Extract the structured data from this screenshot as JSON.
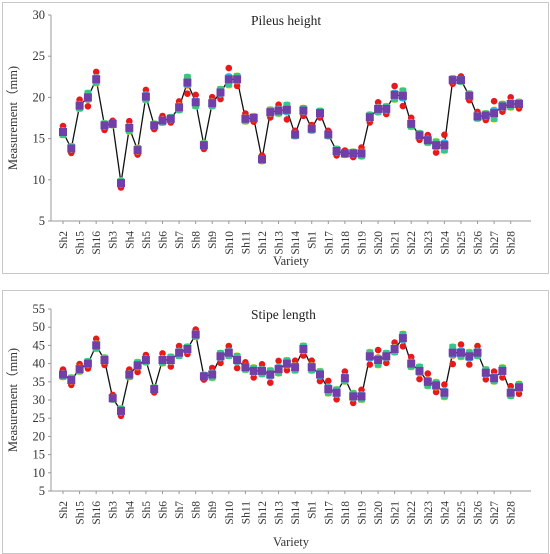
{
  "charts": [
    {
      "id": "pileus",
      "chart_data": {
        "type": "line",
        "title": "Pileus height",
        "xlabel": "Variety",
        "ylabel": "Measurement（mm)",
        "ylim": [
          5,
          30
        ],
        "yticks": [
          5,
          10,
          15,
          20,
          25,
          30
        ],
        "grid": false,
        "categories": [
          "Sh2",
          "Sh15",
          "Sh16",
          "Sh3",
          "Sh4",
          "Sh5",
          "Sh6",
          "Sh7",
          "Sh8",
          "Sh9",
          "Sh10",
          "Sh11",
          "Sh12",
          "Sh13",
          "Sh14",
          "Sh1",
          "Sh17",
          "Sh18",
          "Sh19",
          "Sh20",
          "Sh21",
          "Sh22",
          "Sh23",
          "Sh24",
          "Sh25",
          "Sh26",
          "Sh27",
          "Sh28"
        ],
        "x_index": [
          0,
          0.5,
          1,
          1.5,
          2,
          2.5,
          3,
          3.5,
          4,
          4.5,
          5,
          5.5,
          6,
          6.5,
          7,
          7.5,
          8,
          8.5,
          9,
          9.5,
          10,
          10.5,
          11,
          11.5,
          12,
          12.5,
          13,
          13.5,
          14,
          14.5,
          15,
          15.5,
          16,
          16.5,
          17,
          17.5,
          18,
          18.5,
          19,
          19.5,
          20,
          20.5,
          21,
          21.5,
          22,
          22.5,
          23,
          23.5,
          24,
          24.5,
          25,
          25.5,
          26,
          26.5,
          27,
          27.5
        ],
        "mean": [
          15.8,
          13.8,
          19,
          20,
          22.2,
          16.6,
          16.8,
          9.6,
          16.3,
          13.6,
          20.1,
          16.6,
          17.2,
          17.4,
          18.8,
          21.8,
          19.4,
          14.2,
          19.3,
          20.6,
          22.2,
          22.2,
          17.4,
          17.5,
          12.5,
          18.2,
          18.4,
          18.5,
          15.5,
          18.4,
          16.2,
          18.1,
          15.5,
          13.5,
          13.2,
          13.2,
          13.2,
          17.6,
          18.6,
          18.6,
          20.3,
          20.2,
          16.8,
          15.4,
          14.8,
          14.2,
          14.2,
          22.1,
          22.1,
          20.2,
          17.7,
          17.8,
          18.1,
          18.9,
          19.2,
          19.2
        ],
        "spread": [
          0.8,
          0.6,
          0.8,
          1.2,
          1.0,
          0.6,
          0.4,
          0.6,
          0.9,
          0.6,
          0.9,
          0.5,
          0.6,
          0.5,
          0.8,
          1.5,
          1.0,
          0.5,
          0.8,
          0.9,
          1.5,
          0.9,
          0.7,
          0.5,
          0.5,
          0.7,
          0.8,
          1.3,
          0.5,
          0.7,
          0.5,
          0.6,
          0.5,
          0.6,
          0.4,
          0.5,
          0.8,
          0.7,
          0.9,
          0.7,
          1.2,
          1.4,
          0.8,
          0.6,
          0.7,
          1.0,
          1.4,
          0.5,
          0.5,
          0.6,
          0.6,
          0.6,
          1.6,
          0.7,
          0.9,
          0.6
        ],
        "series": [
          {
            "color": "#e8191b"
          },
          {
            "color": "#f5e320"
          },
          {
            "color": "#f5a623"
          },
          {
            "color": "#2fb0e8"
          },
          {
            "color": "#38c48a"
          },
          {
            "color": "#7040a8"
          }
        ]
      }
    },
    {
      "id": "stipe",
      "chart_data": {
        "type": "line",
        "title": "Stipe length",
        "xlabel": "Variety",
        "ylabel": "Measurement（mm)",
        "ylim": [
          5,
          55
        ],
        "yticks": [
          5,
          10,
          15,
          20,
          25,
          30,
          35,
          40,
          45,
          50,
          55
        ],
        "grid": false,
        "categories": [
          "Sh2",
          "Sh15",
          "Sh16",
          "Sh3",
          "Sh4",
          "Sh5",
          "Sh6",
          "Sh7",
          "Sh8",
          "Sh9",
          "Sh10",
          "Sh11",
          "Sh12",
          "Sh13",
          "Sh14",
          "Sh1",
          "Sh17",
          "Sh18",
          "Sh19",
          "Sh20",
          "Sh21",
          "Sh22",
          "Sh23",
          "Sh24",
          "Sh25",
          "Sh26",
          "Sh27",
          "Sh28"
        ],
        "x_index": [
          0,
          0.5,
          1,
          1.5,
          2,
          2.5,
          3,
          3.5,
          4,
          4.5,
          5,
          5.5,
          6,
          6.5,
          7,
          7.5,
          8,
          8.5,
          9,
          9.5,
          10,
          10.5,
          11,
          11.5,
          12,
          12.5,
          13,
          13.5,
          14,
          14.5,
          15,
          15.5,
          16,
          16.5,
          17,
          17.5,
          18,
          18.5,
          19,
          19.5,
          20,
          20.5,
          21,
          21.5,
          22,
          22.5,
          23,
          23.5,
          24,
          24.5,
          25,
          25.5,
          26,
          26.5,
          27,
          27.5
        ],
        "mean": [
          37,
          35.5,
          38.5,
          40,
          45,
          41,
          30.5,
          27,
          37,
          39.5,
          41,
          33,
          41,
          41,
          43,
          44,
          48,
          36.5,
          37,
          42,
          43,
          41,
          39,
          38,
          38,
          37,
          38.5,
          40,
          39,
          44,
          39,
          37,
          33,
          32,
          36,
          31,
          31,
          42,
          41,
          42,
          44,
          47,
          40,
          38,
          35,
          34,
          32,
          43,
          43,
          42,
          43,
          37.5,
          36,
          38,
          32,
          33.5
        ],
        "spread": [
          1.5,
          1.5,
          1.5,
          1.5,
          2.0,
          1.5,
          1.0,
          1.5,
          1.5,
          2.0,
          1.5,
          1.0,
          2.0,
          2.0,
          2.0,
          1.5,
          1.5,
          1.0,
          2.0,
          2.0,
          2.0,
          2.5,
          1.5,
          2.0,
          2.0,
          2.5,
          2.5,
          2.0,
          2.0,
          2.0,
          2.0,
          2.0,
          2.5,
          2.0,
          2.0,
          2.0,
          2.0,
          2.5,
          3.0,
          2.0,
          2.0,
          2.5,
          2.0,
          2.5,
          2.5,
          2.0,
          2.5,
          3.5,
          2.5,
          2.5,
          2.0,
          2.0,
          2.0,
          2.0,
          2.0,
          2.0
        ],
        "series": [
          {
            "color": "#e8191b"
          },
          {
            "color": "#f5e320"
          },
          {
            "color": "#f5a623"
          },
          {
            "color": "#2fb0e8"
          },
          {
            "color": "#38c48a"
          },
          {
            "color": "#7040a8"
          }
        ]
      }
    }
  ]
}
